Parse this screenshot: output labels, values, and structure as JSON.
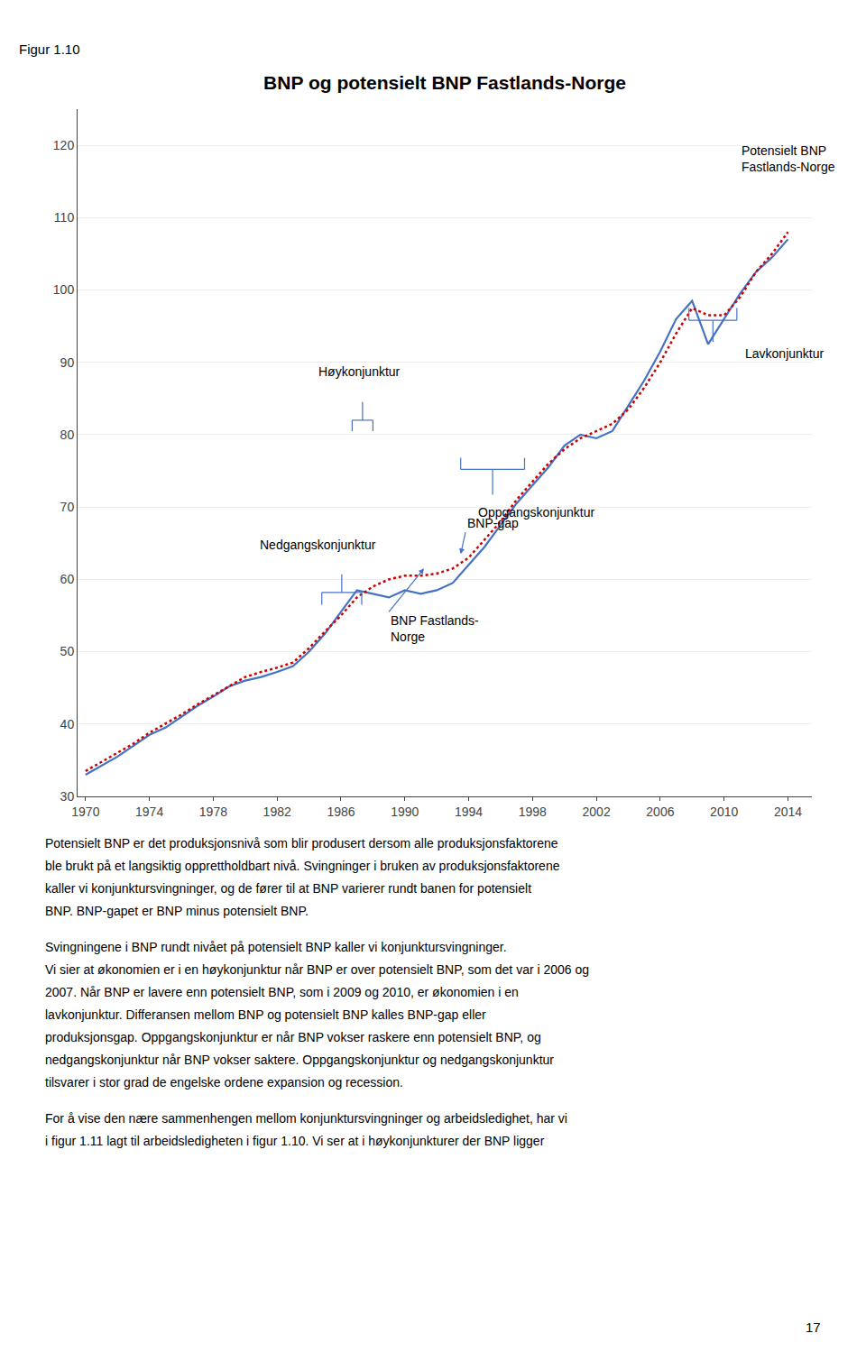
{
  "chart_data": {
    "type": "line",
    "title": "BNP og potensielt BNP Fastlands-Norge",
    "label": "Figur 1.10",
    "x": [
      1970,
      1971,
      1972,
      1973,
      1974,
      1975,
      1976,
      1977,
      1978,
      1979,
      1980,
      1981,
      1982,
      1983,
      1984,
      1985,
      1986,
      1987,
      1988,
      1989,
      1990,
      1991,
      1992,
      1993,
      1994,
      1995,
      1996,
      1997,
      1998,
      1999,
      2000,
      2001,
      2002,
      2003,
      2004,
      2005,
      2006,
      2007,
      2008,
      2009,
      2010,
      2011,
      2012,
      2013,
      2014
    ],
    "series": [
      {
        "color": "#4472C4",
        "line_style": "solid",
        "values": [
          33.0,
          34.2,
          35.5,
          37.0,
          38.5,
          39.5,
          41.0,
          42.5,
          43.8,
          45.2,
          46.0,
          46.5,
          47.2,
          48.0,
          50.0,
          52.5,
          55.5,
          58.5,
          58.0,
          57.5,
          58.5,
          58.0,
          58.5,
          59.5,
          62.0,
          64.5,
          67.5,
          70.5,
          73.0,
          75.5,
          78.5,
          80.0,
          79.5,
          80.5,
          84.0,
          87.5,
          91.5,
          96.0,
          98.5,
          92.5,
          96.0,
          99.5,
          102.5,
          104.5,
          107.0
        ]
      },
      {
        "color": "#CC0000",
        "line_style": "dotted",
        "values": [
          33.5,
          34.8,
          36.0,
          37.3,
          38.8,
          40.0,
          41.3,
          42.7,
          44.0,
          45.3,
          46.5,
          47.2,
          47.8,
          48.5,
          50.5,
          52.8,
          55.0,
          57.5,
          59.0,
          60.0,
          60.5,
          60.5,
          60.8,
          61.5,
          63.0,
          65.5,
          68.0,
          71.0,
          73.5,
          76.0,
          78.0,
          79.5,
          80.5,
          81.5,
          83.5,
          86.5,
          90.0,
          94.0,
          97.5,
          96.5,
          96.5,
          99.0,
          102.5,
          105.0,
          108.0
        ]
      }
    ],
    "xlim": [
      1969.5,
      2015.5
    ],
    "xticks": [
      1970,
      1974,
      1978,
      1982,
      1986,
      1990,
      1994,
      1998,
      2002,
      2006,
      2010,
      2014
    ],
    "ylim": [
      30,
      125
    ],
    "yticks": [
      30,
      40,
      50,
      60,
      70,
      80,
      90,
      100,
      110,
      120
    ],
    "grid": "y",
    "annotations": [
      "Nedgangskonjunktur",
      "Høykonjunktur",
      "BNP Fastlands-\nNorge",
      "BNP-gap",
      "Oppgangskonjunktur",
      "Lavkonjunktur",
      "Potensielt BNP\nFastlands-Norge"
    ],
    "body": [
      [
        "Potensielt BNP er det produksjonsnivå som blir produsert dersom alle produksjonsfaktorene",
        "ble brukt på et langsiktig opprettholdbart nivå. Svingninger i bruken av produksjonsfaktorene",
        "kaller vi konjunktursvingninger, og de fører til at BNP varierer rundt banen for potensielt",
        "BNP. BNP-gapet er BNP minus potensielt BNP."
      ],
      [
        "Svingningene i BNP rundt nivået på potensielt BNP kaller vi konjunktursvingninger.",
        "Vi sier at økonomien er i en høykonjunktur når BNP er over potensielt BNP, som det var i 2006 og",
        "2007. Når BNP er lavere enn potensielt BNP, som i 2009 og 2010, er økonomien i en",
        "lavkonjunktur. Differansen mellom BNP og potensielt BNP kalles BNP-gap eller",
        "produksjonsgap. Oppgangskonjunktur er når BNP vokser raskere enn potensielt BNP, og",
        "nedgangskonjunktur når BNP vokser saktere. Oppgangskonjunktur og nedgangskonjunktur",
        "tilsvarer i stor grad de engelske ordene expansion og recession."
      ],
      [
        "For å vise den nære sammenhengen mellom konjunktursvingninger og arbeidsledighet, har vi",
        "i figur 1.11 lagt til arbeidsledigheten i figur 1.10. Vi ser at i høykonjunkturer der BNP ligger"
      ]
    ],
    "page_number": 17
  }
}
